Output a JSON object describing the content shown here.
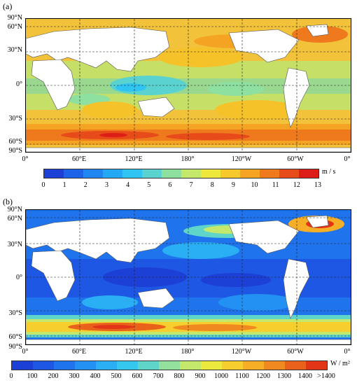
{
  "panel_a": {
    "label": "(a)",
    "lat_labels": [
      "90°N",
      "60°N",
      "30°N",
      "0°",
      "30°S",
      "60°S",
      "90°S"
    ],
    "lon_labels": [
      "0°",
      "60°E",
      "120°E",
      "180°",
      "120°W",
      "60°W",
      "0°"
    ],
    "colorbar": {
      "ticks": [
        "0",
        "1",
        "2",
        "3",
        "4",
        "5",
        "6",
        "7",
        "8",
        "9",
        "10",
        "11",
        "12",
        "13"
      ],
      "unit": "m / s",
      "colors": [
        "#1c3fd6",
        "#1d63e8",
        "#1f86f2",
        "#25a8f4",
        "#2fc4f2",
        "#5ad3d0",
        "#8ee0a0",
        "#c3e86a",
        "#eee83c",
        "#f7c82c",
        "#f5a323",
        "#ef7a1e",
        "#e84b1a",
        "#dd1d17"
      ]
    }
  },
  "panel_b": {
    "label": "(b)",
    "lat_labels": [
      "90°N",
      "60°N",
      "30°N",
      "0°",
      "30°S",
      "60°S",
      "90°S"
    ],
    "lon_labels": [
      "0°",
      "60°E",
      "120°E",
      "180°",
      "120°W",
      "60°W",
      "0°"
    ],
    "colorbar": {
      "ticks": [
        "0",
        "100",
        "200",
        "300",
        "400",
        "500",
        "600",
        "700",
        "800",
        "900",
        "1000",
        "1100",
        "1200",
        "1300",
        "1400",
        ">1400"
      ],
      "unit": "W / m²",
      "colors": [
        "#1c3fd6",
        "#1d57e4",
        "#1f74ee",
        "#2391f3",
        "#2aaef4",
        "#36c7ee",
        "#5fd5c9",
        "#93e19c",
        "#c4e86c",
        "#ebe83e",
        "#f6cf2e",
        "#f5ae26",
        "#f08a20",
        "#ea611c",
        "#e23518"
      ]
    }
  }
}
